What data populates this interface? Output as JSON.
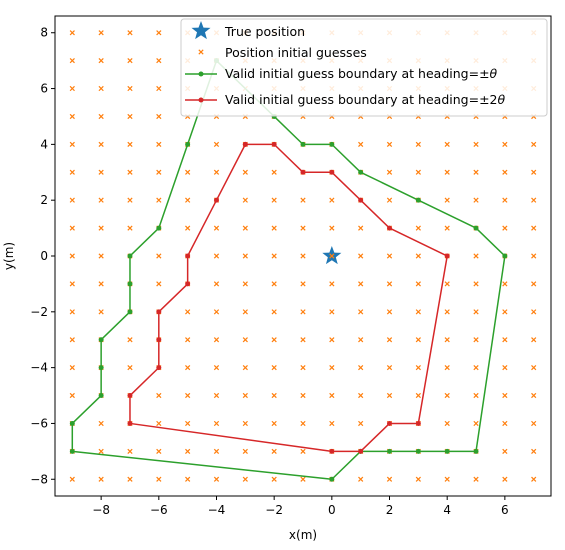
{
  "chart_data": {
    "type": "scatter",
    "xlabel": "x(m)",
    "ylabel": "y(m)",
    "xlim": [
      -9.6,
      7.6
    ],
    "ylim": [
      -8.6,
      8.6
    ],
    "xticks": [
      -8,
      -6,
      -4,
      -2,
      0,
      2,
      4,
      6
    ],
    "yticks": [
      -8,
      -6,
      -4,
      -2,
      0,
      2,
      4,
      6,
      8
    ],
    "grid": false,
    "legend_position": "top-right",
    "colors": {
      "true_position": "#1f77b4",
      "guesses": "#ff7f0e",
      "boundary_1": "#2ca02c",
      "boundary_2": "#d62728"
    },
    "true_position": {
      "name": "True position",
      "x": 0,
      "y": 0
    },
    "guesses": {
      "name": "Position initial guesses",
      "x_range": [
        -9,
        7
      ],
      "y_range": [
        -8,
        8
      ],
      "step": 1
    },
    "series": [
      {
        "name": "Valid initial guess boundary at heading=±θ",
        "name_prefix": "Valid initial guess boundary at heading=±",
        "name_symbol": "θ",
        "points": [
          [
            -4,
            7
          ],
          [
            -2,
            5
          ],
          [
            -1,
            4
          ],
          [
            0,
            4
          ],
          [
            1,
            3
          ],
          [
            3,
            2
          ],
          [
            5,
            1
          ],
          [
            6,
            0
          ],
          [
            5,
            -7
          ],
          [
            4,
            -7
          ],
          [
            3,
            -7
          ],
          [
            2,
            -7
          ],
          [
            1,
            -7
          ],
          [
            0,
            -8
          ],
          [
            -9,
            -7
          ],
          [
            -9,
            -6
          ],
          [
            -8,
            -5
          ],
          [
            -8,
            -4
          ],
          [
            -8,
            -3
          ],
          [
            -7,
            -2
          ],
          [
            -7,
            -1
          ],
          [
            -7,
            0
          ],
          [
            -6,
            1
          ],
          [
            -5,
            4
          ],
          [
            -4,
            7
          ]
        ]
      },
      {
        "name": "Valid initial guess boundary at heading=±2θ",
        "name_prefix": "Valid initial guess boundary at heading=±2",
        "name_symbol": "θ",
        "points": [
          [
            -3,
            4
          ],
          [
            -2,
            4
          ],
          [
            -1,
            3
          ],
          [
            0,
            3
          ],
          [
            1,
            2
          ],
          [
            2,
            1
          ],
          [
            4,
            0
          ],
          [
            3,
            -6
          ],
          [
            2,
            -6
          ],
          [
            1,
            -7
          ],
          [
            0,
            -7
          ],
          [
            -7,
            -6
          ],
          [
            -7,
            -5
          ],
          [
            -6,
            -4
          ],
          [
            -6,
            -3
          ],
          [
            -6,
            -2
          ],
          [
            -5,
            -1
          ],
          [
            -5,
            0
          ],
          [
            -4,
            2
          ],
          [
            -3,
            4
          ]
        ]
      }
    ]
  }
}
